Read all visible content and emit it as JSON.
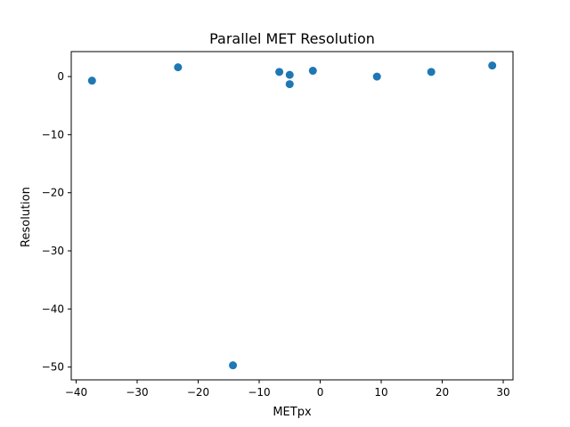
{
  "chart_data": {
    "type": "scatter",
    "title": "Parallel MET Resolution",
    "xlabel": "METpx",
    "ylabel": "Resolution",
    "xlim": [
      -40.8,
      31.6
    ],
    "ylim": [
      -52.2,
      4.3
    ],
    "grid": false,
    "xticks": [
      -40,
      -30,
      -20,
      -10,
      0,
      10,
      20,
      30
    ],
    "yticks": [
      0,
      -10,
      -20,
      -30,
      -40,
      -50
    ],
    "marker_color": "#1f77b4",
    "points": [
      {
        "x": -37.4,
        "y": -0.7
      },
      {
        "x": -23.3,
        "y": 1.6
      },
      {
        "x": -14.3,
        "y": -49.7
      },
      {
        "x": -6.7,
        "y": 0.8
      },
      {
        "x": -5.0,
        "y": 0.3
      },
      {
        "x": -5.0,
        "y": -1.3
      },
      {
        "x": -1.2,
        "y": 1.0
      },
      {
        "x": 9.3,
        "y": 0.0
      },
      {
        "x": 18.2,
        "y": 0.8
      },
      {
        "x": 28.2,
        "y": 1.9
      }
    ]
  }
}
